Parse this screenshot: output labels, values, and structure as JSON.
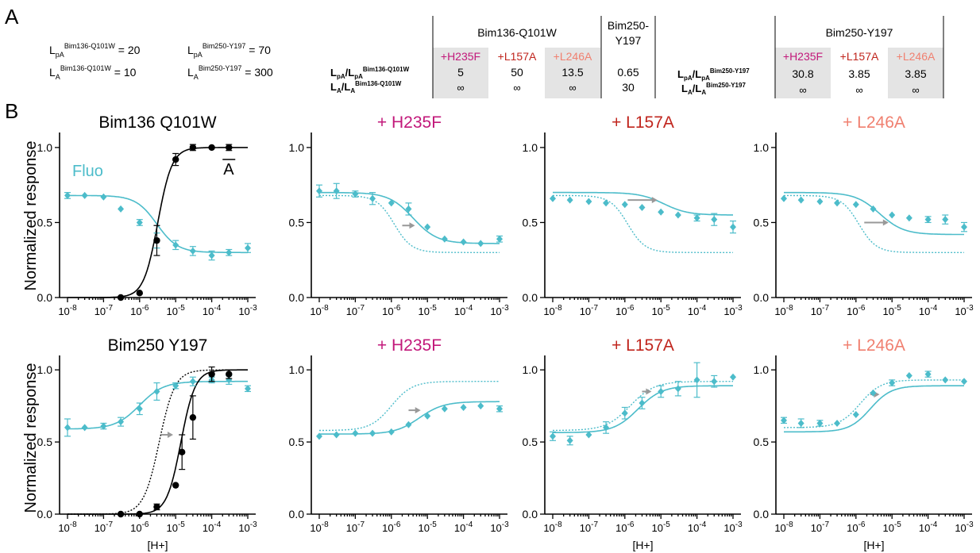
{
  "panel_letters": [
    "A",
    "B"
  ],
  "constants": [
    {
      "base": "L",
      "sub": "pA",
      "sup": "Bim136-Q101W",
      "value": "20"
    },
    {
      "base": "L",
      "sub": "pA",
      "sup": "Bim250-Y197",
      "value": "70"
    },
    {
      "base": "L",
      "sub": "A",
      "sup": "Bim136-Q101W",
      "value": "10"
    },
    {
      "base": "L",
      "sub": "A",
      "sup": "Bim250-Y197",
      "value": "300"
    }
  ],
  "table": {
    "group1_header": "Bim136-Q101W",
    "group2_header_line1": "Bim250-",
    "group2_header_line2": "Y197",
    "group3_header": "Bim250-Y197",
    "row1": {
      "a": "L",
      "asub": "pA",
      "b": "L",
      "bsub": "pA"
    },
    "row2": {
      "a": "L",
      "asub": "A",
      "b": "L",
      "bsub": "A"
    },
    "row_sup1": "Bim136-Q101W",
    "row_sup2": "Bim250-Y197",
    "mutants": [
      "+H235F",
      "+L157A",
      "+L246A"
    ],
    "mutant_colors": [
      "#c2187a",
      "#c0251d",
      "#f08070"
    ],
    "shade_color": "#e4e4e4",
    "bim136_pA": [
      "5",
      "50",
      "13.5"
    ],
    "bim136_A": [
      "∞",
      "∞",
      "∞"
    ],
    "bim250col_pA": "0.65",
    "bim250col_A": "30",
    "bim250_pA": [
      "30.8",
      "3.85",
      "3.85"
    ],
    "bim250_A": [
      "∞",
      "∞",
      "∞"
    ]
  },
  "colors": {
    "fluo": "#4cbcca",
    "black": "#000000",
    "arrow": "#999999"
  },
  "axes": {
    "xtick_exponents": [
      "-8",
      "-7",
      "-6",
      "-5",
      "-4",
      "-3"
    ],
    "xtick_base": "10",
    "ytick_labels": [
      "0.0",
      "0.5",
      "1.0"
    ],
    "ylabel": "Normalized response",
    "xlabel": "[H+]",
    "fluo_label": "Fluo",
    "a_label": "A"
  },
  "chart_data": [
    {
      "type": "scatter",
      "title": "Bim136 Q101W",
      "title_color": "#000000",
      "xscale": "log",
      "xlim": [
        1e-08,
        0.001
      ],
      "ylim": [
        0,
        1.1
      ],
      "has_ylabel": true,
      "has_xlabel": false,
      "series": [
        {
          "name": "Fluo",
          "color": "#4cbcca",
          "marker": "diamond",
          "x": [
            1e-08,
            3e-08,
            1e-07,
            3e-07,
            1e-06,
            3e-06,
            1e-05,
            3e-05,
            0.0001,
            0.0003,
            0.001
          ],
          "y": [
            0.68,
            0.68,
            0.67,
            0.59,
            0.5,
            0.38,
            0.35,
            0.31,
            0.28,
            0.3,
            0.33
          ],
          "err": [
            0.02,
            0,
            0,
            0,
            0.02,
            0.05,
            0.03,
            0.03,
            0.03,
            0.02,
            0.03
          ]
        },
        {
          "name": "A",
          "color": "#000000",
          "marker": "circle",
          "x": [
            3e-07,
            1e-06,
            3e-06,
            1e-05,
            3e-05,
            0.0001,
            0.0003
          ],
          "y": [
            0.0,
            0.03,
            0.38,
            0.92,
            1.0,
            1.0,
            1.0
          ],
          "err": [
            0,
            0,
            0.1,
            0.04,
            0.02,
            0,
            0.02
          ]
        }
      ],
      "curves": [
        {
          "color": "#4cbcca",
          "dash": false,
          "top": 0.68,
          "bottom": 0.3,
          "mid": 3e-06,
          "slope": 1.5
        },
        {
          "color": "#000000",
          "dash": false,
          "top": 0.0,
          "bottom": 1.0,
          "mid": 3.2e-06,
          "slope": 2.2
        }
      ],
      "arrow": null
    },
    {
      "type": "scatter",
      "title": "+ H235F",
      "title_color": "#c2187a",
      "xscale": "log",
      "xlim": [
        1e-08,
        0.001
      ],
      "ylim": [
        0,
        1.1
      ],
      "has_ylabel": false,
      "has_xlabel": false,
      "series": [
        {
          "name": "",
          "color": "#4cbcca",
          "marker": "diamond",
          "x": [
            1e-08,
            3e-08,
            1e-07,
            3e-07,
            1e-06,
            3e-06,
            1e-05,
            3e-05,
            0.0001,
            0.0003,
            0.001
          ],
          "y": [
            0.71,
            0.71,
            0.69,
            0.66,
            0.63,
            0.59,
            0.47,
            0.39,
            0.37,
            0.36,
            0.39
          ],
          "err": [
            0.04,
            0.05,
            0.02,
            0.04,
            0,
            0.04,
            0,
            0,
            0,
            0,
            0.02
          ]
        }
      ],
      "curves": [
        {
          "color": "#4cbcca",
          "dash": false,
          "top": 0.7,
          "bottom": 0.36,
          "mid": 4e-06,
          "slope": 1.3
        },
        {
          "color": "#4cbcca",
          "dash": true,
          "top": 0.68,
          "bottom": 0.3,
          "mid": 1.2e-06,
          "slope": 1.8
        }
      ],
      "arrow": {
        "x1": 2e-06,
        "x2": 4.5e-06,
        "y": 0.48
      }
    },
    {
      "type": "scatter",
      "title": "+ L157A",
      "title_color": "#c0251d",
      "xscale": "log",
      "xlim": [
        1e-08,
        0.001
      ],
      "ylim": [
        0,
        1.1
      ],
      "has_ylabel": false,
      "has_xlabel": false,
      "series": [
        {
          "name": "",
          "color": "#4cbcca",
          "marker": "diamond",
          "x": [
            1e-08,
            3e-08,
            1e-07,
            3e-07,
            1e-06,
            3e-06,
            1e-05,
            3e-05,
            0.0001,
            0.0003,
            0.001
          ],
          "y": [
            0.66,
            0.65,
            0.64,
            0.63,
            0.62,
            0.6,
            0.57,
            0.55,
            0.53,
            0.52,
            0.47
          ],
          "err": [
            0,
            0,
            0,
            0,
            0,
            0,
            0,
            0,
            0.02,
            0.04,
            0.04
          ]
        }
      ],
      "curves": [
        {
          "color": "#4cbcca",
          "dash": false,
          "top": 0.7,
          "bottom": 0.55,
          "mid": 1.2e-05,
          "slope": 1.3
        },
        {
          "color": "#4cbcca",
          "dash": true,
          "top": 0.68,
          "bottom": 0.3,
          "mid": 1.2e-06,
          "slope": 1.8
        }
      ],
      "arrow": {
        "x1": 1.2e-06,
        "x2": 8e-06,
        "y": 0.65
      }
    },
    {
      "type": "scatter",
      "title": "+ L246A",
      "title_color": "#f08070",
      "xscale": "log",
      "xlim": [
        1e-08,
        0.001
      ],
      "ylim": [
        0,
        1.1
      ],
      "has_ylabel": false,
      "has_xlabel": false,
      "series": [
        {
          "name": "",
          "color": "#4cbcca",
          "marker": "diamond",
          "x": [
            1e-08,
            3e-08,
            1e-07,
            3e-07,
            1e-06,
            3e-06,
            1e-05,
            3e-05,
            0.0001,
            0.0003,
            0.001
          ],
          "y": [
            0.66,
            0.65,
            0.64,
            0.63,
            0.62,
            0.59,
            0.55,
            0.53,
            0.52,
            0.52,
            0.47
          ],
          "err": [
            0,
            0,
            0,
            0,
            0,
            0,
            0,
            0,
            0.02,
            0.03,
            0.03
          ]
        }
      ],
      "curves": [
        {
          "color": "#4cbcca",
          "dash": false,
          "top": 0.7,
          "bottom": 0.42,
          "mid": 4.5e-06,
          "slope": 1.3
        },
        {
          "color": "#4cbcca",
          "dash": true,
          "top": 0.68,
          "bottom": 0.3,
          "mid": 1.2e-06,
          "slope": 1.8
        }
      ],
      "arrow": {
        "x1": 1.7e-06,
        "x2": 8e-06,
        "y": 0.5
      }
    },
    {
      "type": "scatter",
      "title": "Bim250 Y197",
      "title_color": "#000000",
      "xscale": "log",
      "xlim": [
        1e-08,
        0.001
      ],
      "ylim": [
        0,
        1.1
      ],
      "has_ylabel": true,
      "has_xlabel": true,
      "series": [
        {
          "name": "",
          "color": "#4cbcca",
          "marker": "diamond",
          "x": [
            1e-08,
            3e-08,
            1e-07,
            3e-07,
            1e-06,
            3e-06,
            1e-05,
            3e-05,
            0.0001,
            0.0003,
            0.001
          ],
          "y": [
            0.6,
            0.6,
            0.61,
            0.64,
            0.73,
            0.85,
            0.89,
            0.92,
            0.93,
            0.93,
            0.87
          ],
          "err": [
            0.06,
            0,
            0.02,
            0.03,
            0.04,
            0.06,
            0.02,
            0.03,
            0.02,
            0.03,
            0.02
          ]
        },
        {
          "name": "",
          "color": "#000000",
          "marker": "circle",
          "x": [
            3e-07,
            1e-06,
            3e-06,
            1e-05,
            1.5e-05,
            3e-05,
            0.0001,
            0.0003
          ],
          "y": [
            0.0,
            0.0,
            0.05,
            0.2,
            0.43,
            0.67,
            0.97,
            0.97
          ],
          "err": [
            0,
            0,
            0.02,
            0,
            0.12,
            0.15,
            0.05,
            0.03
          ]
        }
      ],
      "curves": [
        {
          "color": "#4cbcca",
          "dash": false,
          "top": 0.59,
          "bottom": 0.92,
          "mid": 1e-06,
          "slope": 1.3
        },
        {
          "color": "#000000",
          "dash": false,
          "top": 0.0,
          "bottom": 1.0,
          "mid": 1.4e-05,
          "slope": 2.2
        },
        {
          "color": "#000000",
          "dash": true,
          "top": 0.0,
          "bottom": 1.0,
          "mid": 3.5e-06,
          "slope": 2.0
        }
      ],
      "arrow": {
        "x1": 4e-06,
        "x2": 8.5e-06,
        "y": 0.55
      }
    },
    {
      "type": "scatter",
      "title": "+ H235F",
      "title_color": "#c2187a",
      "xscale": "log",
      "xlim": [
        1e-08,
        0.001
      ],
      "ylim": [
        0,
        1.1
      ],
      "has_ylabel": false,
      "has_xlabel": false,
      "series": [
        {
          "name": "",
          "color": "#4cbcca",
          "marker": "diamond",
          "x": [
            1e-08,
            3e-08,
            1e-07,
            3e-07,
            1e-06,
            3e-06,
            1e-05,
            3e-05,
            0.0001,
            0.0003,
            0.001
          ],
          "y": [
            0.54,
            0.55,
            0.56,
            0.56,
            0.57,
            0.62,
            0.68,
            0.73,
            0.74,
            0.75,
            0.73
          ],
          "err": [
            0,
            0,
            0,
            0,
            0,
            0,
            0,
            0,
            0,
            0,
            0.02
          ]
        }
      ],
      "curves": [
        {
          "color": "#4cbcca",
          "dash": false,
          "top": 0.555,
          "bottom": 0.78,
          "mid": 6e-06,
          "slope": 1.3
        },
        {
          "color": "#4cbcca",
          "dash": true,
          "top": 0.58,
          "bottom": 0.92,
          "mid": 1e-06,
          "slope": 1.5
        }
      ],
      "arrow": {
        "x1": 3e-06,
        "x2": 6.5e-06,
        "y": 0.72
      }
    },
    {
      "type": "scatter",
      "title": "+ L157A",
      "title_color": "#c0251d",
      "xscale": "log",
      "xlim": [
        1e-08,
        0.001
      ],
      "ylim": [
        0,
        1.1
      ],
      "has_ylabel": false,
      "has_xlabel": true,
      "series": [
        {
          "name": "",
          "color": "#4cbcca",
          "marker": "diamond",
          "x": [
            1e-08,
            3e-08,
            1e-07,
            3e-07,
            1e-06,
            3e-06,
            1e-05,
            3e-05,
            0.0001,
            0.0003,
            0.001
          ],
          "y": [
            0.54,
            0.51,
            0.55,
            0.6,
            0.7,
            0.77,
            0.85,
            0.87,
            0.93,
            0.92,
            0.95
          ],
          "err": [
            0.03,
            0.03,
            0,
            0.04,
            0.04,
            0.04,
            0.04,
            0.05,
            0.12,
            0.04,
            0
          ]
        }
      ],
      "curves": [
        {
          "color": "#4cbcca",
          "dash": false,
          "top": 0.565,
          "bottom": 0.89,
          "mid": 2.3e-06,
          "slope": 1.3
        },
        {
          "color": "#4cbcca",
          "dash": true,
          "top": 0.58,
          "bottom": 0.92,
          "mid": 1.4e-06,
          "slope": 1.3
        }
      ],
      "arrow": {
        "x1": 3e-06,
        "x2": 5.5e-06,
        "y": 0.85
      }
    },
    {
      "type": "scatter",
      "title": "+ L246A",
      "title_color": "#f08070",
      "xscale": "log",
      "xlim": [
        1e-08,
        0.001
      ],
      "ylim": [
        0,
        1.1
      ],
      "has_ylabel": false,
      "has_xlabel": true,
      "series": [
        {
          "name": "",
          "color": "#4cbcca",
          "marker": "diamond",
          "x": [
            1e-08,
            3e-08,
            1e-07,
            3e-07,
            1e-06,
            3e-06,
            1e-05,
            3e-05,
            0.0001,
            0.0003,
            0.001
          ],
          "y": [
            0.65,
            0.63,
            0.63,
            0.63,
            0.69,
            0.84,
            0.91,
            0.96,
            0.97,
            0.93,
            0.92
          ],
          "err": [
            0.02,
            0.03,
            0.02,
            0,
            0,
            0,
            0.02,
            0,
            0.02,
            0,
            0
          ]
        }
      ],
      "curves": [
        {
          "color": "#4cbcca",
          "dash": false,
          "top": 0.57,
          "bottom": 0.89,
          "mid": 2.5e-06,
          "slope": 1.5
        },
        {
          "color": "#4cbcca",
          "dash": true,
          "top": 0.6,
          "bottom": 0.93,
          "mid": 1.3e-06,
          "slope": 1.5
        }
      ],
      "arrow": {
        "x1": 2.5e-06,
        "x2": 4.5e-06,
        "y": 0.83
      }
    }
  ]
}
